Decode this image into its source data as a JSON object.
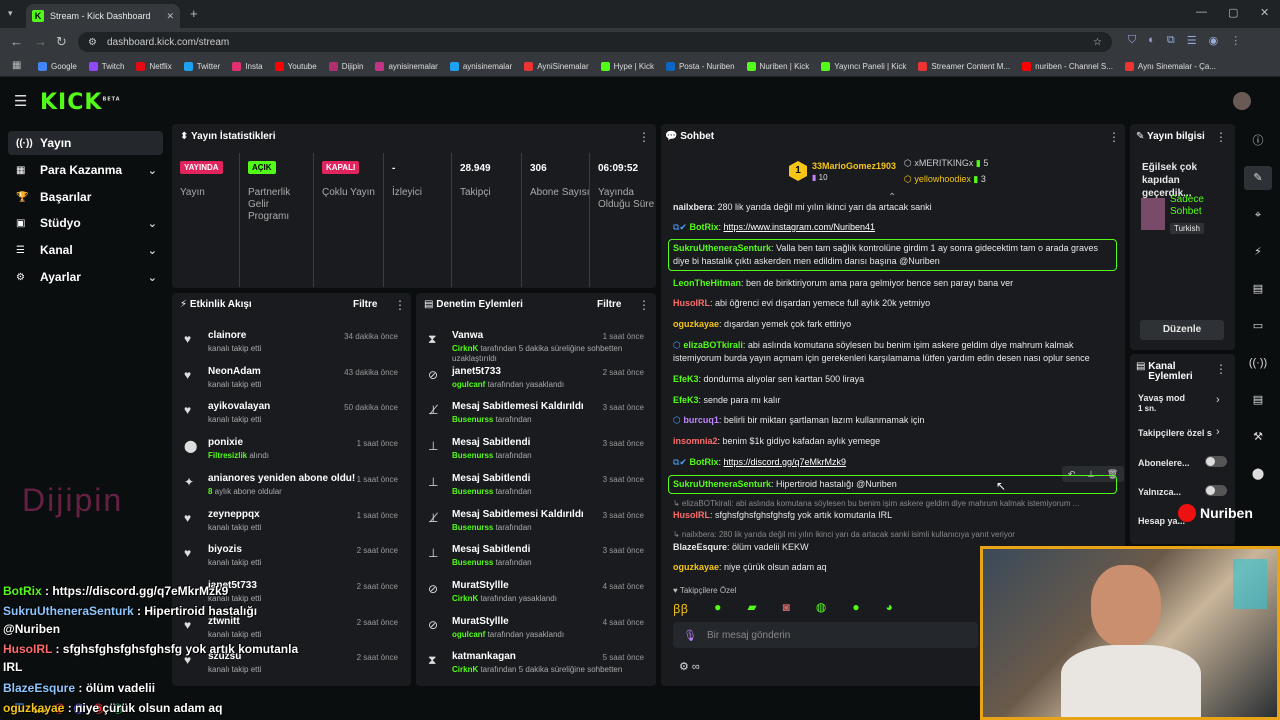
{
  "browser": {
    "tab_title": "Stream - Kick Dashboard",
    "url": "dashboard.kick.com/stream",
    "bookmarks": [
      "Google",
      "Twitch",
      "Netflix",
      "Twitter",
      "Insta",
      "Youtube",
      "Dijipin",
      "aynisinemalar",
      "aynisinemalar",
      "AyniSinemalar",
      "Hype | Kick",
      "Posta - Nuriben",
      "Nuriben | Kick",
      "Yayıncı Paneli | Kick",
      "Streamer Content M...",
      "nuriben - Channel S...",
      "Aynı Sinemalar - Ça..."
    ]
  },
  "brand": {
    "logo": "KICK",
    "beta": "BETA",
    "accent": "#53fc18"
  },
  "sidebar": {
    "items": [
      {
        "icon": "((·))",
        "label": "Yayın"
      },
      {
        "icon": "▦",
        "label": "Para Kazanma"
      },
      {
        "icon": "🏆",
        "label": "Başarılar"
      },
      {
        "icon": "▣",
        "label": "Stüdyo"
      },
      {
        "icon": "☰",
        "label": "Kanal"
      },
      {
        "icon": "⚙",
        "label": "Ayarlar"
      }
    ]
  },
  "stats": {
    "title": "Yayın İstatistikleri",
    "cells": [
      {
        "badge": "YAYINDA",
        "label": "Yayın"
      },
      {
        "badge": "AÇIK",
        "label": "Partnerlik Gelir Programı"
      },
      {
        "badge": "KAPALI",
        "label": "Çoklu Yayın"
      },
      {
        "value": "-",
        "label": "İzleyici"
      },
      {
        "value": "28.949",
        "label": "Takipçi"
      },
      {
        "value": "306",
        "label": "Abone Sayısı"
      },
      {
        "value": "06:09:52",
        "label": "Yayında Olduğu Süre"
      }
    ]
  },
  "activity": {
    "title": "Etkinlik Akışı",
    "filter": "Filtre",
    "items": [
      {
        "name": "clainore",
        "sub": "kanalı takip etti",
        "time": "34 dakika önce"
      },
      {
        "name": "NeonAdam",
        "sub": "kanalı takip etti",
        "time": "43 dakika önce"
      },
      {
        "name": "ayikovalayan",
        "sub": "kanalı takip etti",
        "time": "50 dakika önce"
      },
      {
        "name": "ponixie",
        "sub_green": "Filtresizlik",
        "sub": " alındı",
        "time": "1 saat önce"
      },
      {
        "name": "anianores yeniden abone oldu!",
        "sub_green": "8",
        "sub": " aylık abone oldular",
        "time": "1 saat önce"
      },
      {
        "name": "zeyneppqx",
        "sub": "kanalı takip etti",
        "time": "1 saat önce"
      },
      {
        "name": "biyozis",
        "sub": "kanalı takip etti",
        "time": "2 saat önce"
      },
      {
        "name": "janet5t733",
        "sub": "kanalı takip etti",
        "time": "2 saat önce"
      },
      {
        "name": "ztwnitt",
        "sub": "kanalı takip etti",
        "time": "2 saat önce"
      },
      {
        "name": "szuzsu",
        "sub": "kanalı takip etti",
        "time": "2 saat önce"
      }
    ]
  },
  "moderation": {
    "title": "Denetim Eylemleri",
    "filter": "Filtre",
    "items": [
      {
        "name": "Vanwa",
        "by": "CirknK",
        "sub": " tarafından 5 dakika süreliğine sohbetten uzaklaştırıldı",
        "time": "1 saat önce"
      },
      {
        "name": "janet5t733",
        "by": "ogulcanf",
        "sub": " tarafından yasaklandı",
        "time": "2 saat önce"
      },
      {
        "name": "Mesaj Sabitlemesi Kaldırıldı",
        "by": "Busenurss",
        "sub": " tarafından",
        "time": "3 saat önce"
      },
      {
        "name": "Mesaj Sabitlendi",
        "by": "Busenurss",
        "sub": " tarafından",
        "time": "3 saat önce"
      },
      {
        "name": "Mesaj Sabitlendi",
        "by": "Busenurss",
        "sub": " tarafından",
        "time": "3 saat önce"
      },
      {
        "name": "Mesaj Sabitlemesi Kaldırıldı",
        "by": "Busenurss",
        "sub": " tarafından",
        "time": "3 saat önce"
      },
      {
        "name": "Mesaj Sabitlendi",
        "by": "Busenurss",
        "sub": " tarafından",
        "time": "3 saat önce"
      },
      {
        "name": "MuratStyllle",
        "by": "CirknK",
        "sub": " tarafından yasaklandı",
        "time": "4 saat önce"
      },
      {
        "name": "MuratStyllle",
        "by": "ogulcanf",
        "sub": " tarafından yasaklandı",
        "time": "4 saat önce"
      },
      {
        "name": "katmankagan",
        "by": "CirknK",
        "sub": " tarafından 5 dakika süreliğine sohbetten",
        "time": "5 saat önce"
      }
    ]
  },
  "chat": {
    "title": "Sohbet",
    "top_gifters": [
      {
        "name": "33MarioGomez1903",
        "count": "10"
      },
      {
        "name": "xMERITKINGx",
        "count": "5"
      },
      {
        "name": "yellowhoodiex",
        "count": "3"
      }
    ],
    "messages": [
      {
        "user": "nailxbera",
        "color": "#e8e8e8",
        "text": ": 280 lik yarıda değil mi yılın ikinci yarı da artacak sanki"
      },
      {
        "user": "BotRix",
        "color": "#53fc18",
        "text": ": ",
        "link": "https://www.instagram.com/Nuriben41"
      },
      {
        "user": "SukruUtheneraSenturk",
        "color": "#53fc18",
        "text": ": Valla ben tam sağlık kontrolüne girdim 1 ay sonra gidecektim tam o arada graves diye bi hastalık çıktı askerden men edildim darısı başına @Nuriben"
      },
      {
        "user": "LeonTheHitman",
        "color": "#53fc18",
        "text": ": ben de biriktiriyorum ama para gelmiyor bence sen parayı bana ver"
      },
      {
        "user": "HusoIRL",
        "color": "#ff6b6b",
        "text": ": abi öğrenci evi dışardan yemece full aylık 20k yetmiyo"
      },
      {
        "user": "oguzkayae",
        "color": "#f5c518",
        "text": ": dışardan yemek çok fark ettiriyo"
      },
      {
        "user": "elizaBOTkirali",
        "color": "#53fc18",
        "text": ": abi aslında komutana söylesen bu benim işim askere geldim diye mahrum kalmak istemiyorum burda yayın açmam için gerekenleri karşılamama lütfen yardım edin desen nası oplur sence"
      },
      {
        "user": "EfeK3",
        "color": "#53fc18",
        "text": ": dondurma alıyolar sen karttan 500 liraya"
      },
      {
        "user": "EfeK3",
        "color": "#53fc18",
        "text": ": sende para mı kalır"
      },
      {
        "user": "burcuq1",
        "color": "#c084fc",
        "text": ": belirli bir miktarı şartlaman lazım kullanmamak için"
      },
      {
        "user": "insomnia2",
        "color": "#ff6b6b",
        "text": ": benim $1k gidiyo kafadan aylık yemege"
      },
      {
        "user": "BotRix",
        "color": "#53fc18",
        "text": ": ",
        "link": "https://discord.gg/q7eMkrMzk9"
      },
      {
        "user": "SukruUtheneraSenturk",
        "color": "#53fc18",
        "text": ": Hipertiroid hastalığı @Nuriben"
      },
      {
        "reply": "elizaBOTkirali: abi aslında komutana söylesen bu benim işim askere geldim diye mahrum kalmak istemiyorum ..."
      },
      {
        "user": "HusoIRL",
        "color": "#ff6b6b",
        "text": ": sfghsfghsfghsfghsfg yok artık komutanla IRL"
      },
      {
        "reply": "nailxbera: 280 lik yarıda değil mi yılın ikinci yarı da artacak sanki isimli kullanıcıya yanıt veriyor"
      },
      {
        "user": "BlazeEsqure",
        "color": "#e8e8e8",
        "text": ": ölüm vadelii KEKW"
      },
      {
        "user": "oguzkayae",
        "color": "#f5c518",
        "text": ": niye çürük olsun adam aq"
      }
    ],
    "emote_label": "Takipçilere Özel",
    "placeholder": "Bir mesaj gönderin"
  },
  "stream_info": {
    "title": "Yayın bilgisi",
    "stream_title": "Eğilsek çok kapıdan geçerdik...",
    "category": "Sadece Sohbet",
    "lang": "Turkish",
    "edit": "Düzenle"
  },
  "channel_actions": {
    "title": "Kanal Eylemleri",
    "slow": "Yavaş mod",
    "slow_val": "1 sn.",
    "followers": "Takipçilere özel s",
    "subs": "Abonelere...",
    "only": "Yalnızca...",
    "acc": "Hesap ya..."
  },
  "overlay": {
    "lines": [
      {
        "u": "BotRix",
        "c": "#53fc18",
        "t": " : https://discord.gg/q7eMkrMzk9"
      },
      {
        "u": "SukruUtheneraSenturk",
        "c": "#8ec7ff",
        "t": " : Hipertiroid hastalığı"
      },
      {
        "u": "",
        "c": "#fff",
        "t": "@Nuriben"
      },
      {
        "u": "HusoIRL",
        "c": "#ff6b6b",
        "t": " : sfghsfghsfghsfghsfg yok artık komutanla"
      },
      {
        "u": "",
        "c": "#fff",
        "t": "IRL"
      },
      {
        "u": "BlazeEsqure",
        "c": "#8ec7ff",
        "t": " : ölüm vadelii"
      },
      {
        "u": "oguzkayae",
        "c": "#f5c518",
        "t": " : niye çürük olsun adam aq"
      }
    ],
    "dijipin": "Dijipin",
    "nuriben": "Nuriben"
  }
}
